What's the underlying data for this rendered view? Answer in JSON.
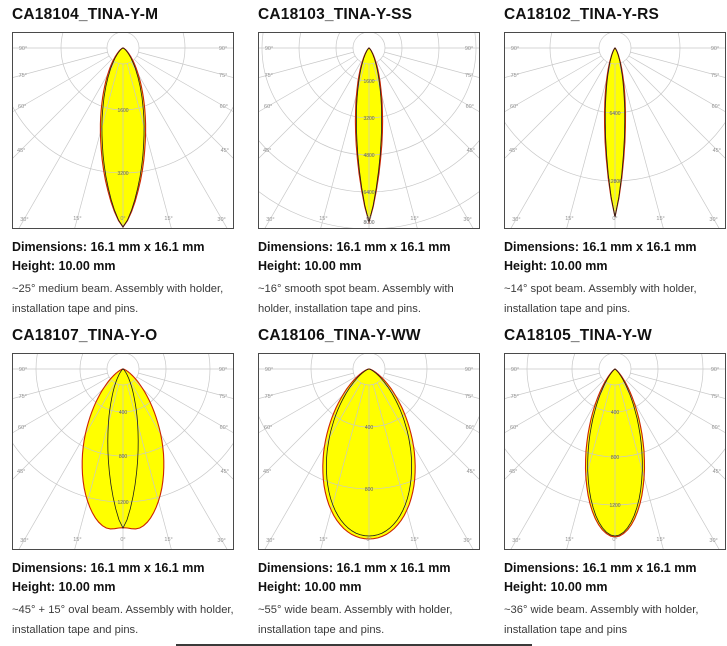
{
  "colors": {
    "beam_fill": "#ffff00",
    "curve_red": "#cc2200",
    "curve_black": "#1c1c1c",
    "grid": "#c8c8c8",
    "angle_label": "#909090",
    "ring_label": "#5f5f5f",
    "plot_border": "#4a4a4a"
  },
  "angle_labels": [
    "90°",
    "75°",
    "60°",
    "45°",
    "30°",
    "15°",
    "0°"
  ],
  "chart_data": [
    {
      "type": "polar-intensity",
      "title": "CA18104_TINA-Y-M",
      "dimensions_line": "Dimensions: 16.1 mm x 16.1 mm",
      "height_line": "Height: 10.00 mm",
      "description": "~25° medium beam. Assembly with holder, installation tape and pins.",
      "inner_circle_r": 16,
      "rings": [
        {
          "r": 62,
          "label": "1600"
        },
        {
          "r": 125,
          "label": "3200"
        }
      ],
      "lobes": [
        {
          "plane": "C0",
          "color": "red",
          "half_angle": 14.6,
          "shape": 1.3,
          "peak_r": 179
        },
        {
          "plane": "C90",
          "color": "black",
          "half_angle": 13.6,
          "shape": 1.3,
          "peak_r": 179
        }
      ]
    },
    {
      "type": "polar-intensity",
      "title": "CA18103_TINA-Y-SS",
      "dimensions_line": "Dimensions: 16.1 mm x 16.1 mm",
      "height_line": "Height: 10.00 mm",
      "description": "~16° smooth spot beam. Assembly with holder, installation tape and pins.",
      "inner_circle_r": 16,
      "rings": [
        {
          "r": 33,
          "label": "1600"
        },
        {
          "r": 70,
          "label": "3200"
        },
        {
          "r": 107,
          "label": "4800"
        },
        {
          "r": 144,
          "label": "6400"
        },
        {
          "r": 181,
          "label": "8000"
        }
      ],
      "lobes": [
        {
          "plane": "C0",
          "color": "red",
          "half_angle": 8.8,
          "shape": 1.15,
          "peak_r": 174
        },
        {
          "plane": "C90",
          "color": "black",
          "half_angle": 8.2,
          "shape": 1.15,
          "peak_r": 174
        }
      ]
    },
    {
      "type": "polar-intensity",
      "title": "CA18102_TINA-Y-RS",
      "dimensions_line": "Dimensions: 16.1 mm x 16.1 mm",
      "height_line": "Height: 10.00 mm",
      "description": "~14° spot beam. Assembly with holder, installation tape and pins.",
      "inner_circle_r": 16,
      "rings": [
        {
          "r": 65,
          "label": "6400"
        },
        {
          "r": 133,
          "label": "12800"
        }
      ],
      "lobes": [
        {
          "plane": "C0",
          "color": "red",
          "half_angle": 7.0,
          "shape": 1.15,
          "peak_r": 169
        },
        {
          "plane": "C90",
          "color": "black",
          "half_angle": 6.5,
          "shape": 1.15,
          "peak_r": 169
        }
      ]
    },
    {
      "type": "polar-intensity",
      "title": "CA18107_TINA-Y-O",
      "dimensions_line": "Dimensions: 16.1 mm x 16.1 mm",
      "height_line": "Height: 10.00 mm",
      "description": "~45° + 15° oval beam. Assembly with holder, installation tape and pins.",
      "inner_circle_r": 16,
      "rings": [
        {
          "r": 43,
          "label": "400"
        },
        {
          "r": 87,
          "label": "800"
        },
        {
          "r": 133,
          "label": "1200"
        }
      ],
      "lobes": [
        {
          "plane": "C0",
          "color": "red",
          "half_angle": 28,
          "shape": 2.0,
          "peak_r": 167,
          "dip": 0.05,
          "dip_w": 5
        },
        {
          "plane": "C90",
          "color": "black",
          "half_angle": 11,
          "shape": 1.3,
          "peak_r": 159
        }
      ]
    },
    {
      "type": "polar-intensity",
      "title": "CA18106_TINA-Y-WW",
      "dimensions_line": "Dimensions: 16.1 mm x 16.1 mm",
      "height_line": "Height: 10.00 mm",
      "description": "~55° wide beam. Assembly with holder, installation tape and pins.",
      "inner_circle_r": 16,
      "rings": [
        {
          "r": 58,
          "label": "400"
        },
        {
          "r": 120,
          "label": "800"
        }
      ],
      "lobes": [
        {
          "plane": "C0",
          "color": "red",
          "half_angle": 31,
          "shape": 2.1,
          "peak_r": 170
        },
        {
          "plane": "C90",
          "color": "black",
          "half_angle": 29,
          "shape": 2.1,
          "peak_r": 167
        }
      ]
    },
    {
      "type": "polar-intensity",
      "title": "CA18105_TINA-Y-W",
      "dimensions_line": "Dimensions: 16.1 mm x 16.1 mm",
      "height_line": "Height: 10.00 mm",
      "description": "~36° wide beam. Assembly with holder, installation tape and pins",
      "inner_circle_r": 16,
      "rings": [
        {
          "r": 43,
          "label": "400"
        },
        {
          "r": 88,
          "label": "800"
        },
        {
          "r": 136,
          "label": "1200"
        }
      ],
      "lobes": [
        {
          "plane": "C0",
          "color": "red",
          "half_angle": 20,
          "shape": 1.9,
          "peak_r": 168
        },
        {
          "plane": "C90",
          "color": "black",
          "half_angle": 18.6,
          "shape": 1.9,
          "peak_r": 167
        }
      ]
    }
  ]
}
